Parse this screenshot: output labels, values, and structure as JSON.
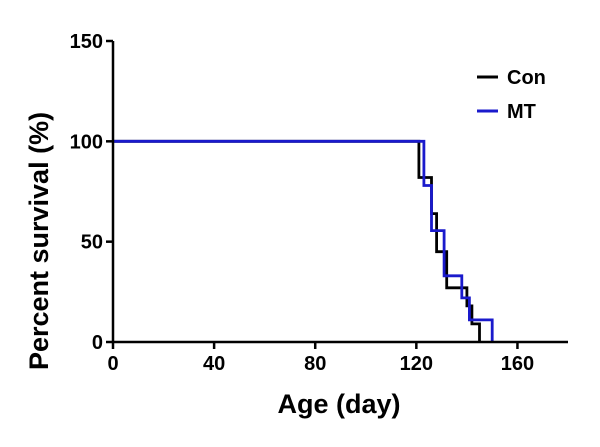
{
  "chart_data": {
    "type": "line",
    "step": true,
    "xlabel": "Age (day)",
    "ylabel": "Percent survival (%)",
    "xlim": [
      0,
      180
    ],
    "ylim": [
      0,
      150
    ],
    "x_ticks": [
      0,
      40,
      80,
      120,
      160
    ],
    "y_ticks": [
      0,
      50,
      100,
      150
    ],
    "legend_position": "top-right",
    "series": [
      {
        "name": "Con",
        "color": "#000000",
        "points": [
          {
            "x": 0,
            "y": 100
          },
          {
            "x": 121,
            "y": 100
          },
          {
            "x": 121,
            "y": 82
          },
          {
            "x": 126,
            "y": 82
          },
          {
            "x": 126,
            "y": 64
          },
          {
            "x": 128,
            "y": 64
          },
          {
            "x": 128,
            "y": 45
          },
          {
            "x": 132,
            "y": 45
          },
          {
            "x": 132,
            "y": 27
          },
          {
            "x": 140,
            "y": 27
          },
          {
            "x": 140,
            "y": 18
          },
          {
            "x": 142,
            "y": 18
          },
          {
            "x": 142,
            "y": 9
          },
          {
            "x": 145,
            "y": 9
          },
          {
            "x": 145,
            "y": 0
          }
        ]
      },
      {
        "name": "MT",
        "color": "#1a1acc",
        "points": [
          {
            "x": 0,
            "y": 100
          },
          {
            "x": 123,
            "y": 100
          },
          {
            "x": 123,
            "y": 78
          },
          {
            "x": 126,
            "y": 78
          },
          {
            "x": 126,
            "y": 55.5
          },
          {
            "x": 131,
            "y": 55.5
          },
          {
            "x": 131,
            "y": 33
          },
          {
            "x": 138,
            "y": 33
          },
          {
            "x": 138,
            "y": 22
          },
          {
            "x": 141,
            "y": 22
          },
          {
            "x": 141,
            "y": 11
          },
          {
            "x": 150,
            "y": 11
          },
          {
            "x": 150,
            "y": 0
          }
        ]
      }
    ]
  }
}
